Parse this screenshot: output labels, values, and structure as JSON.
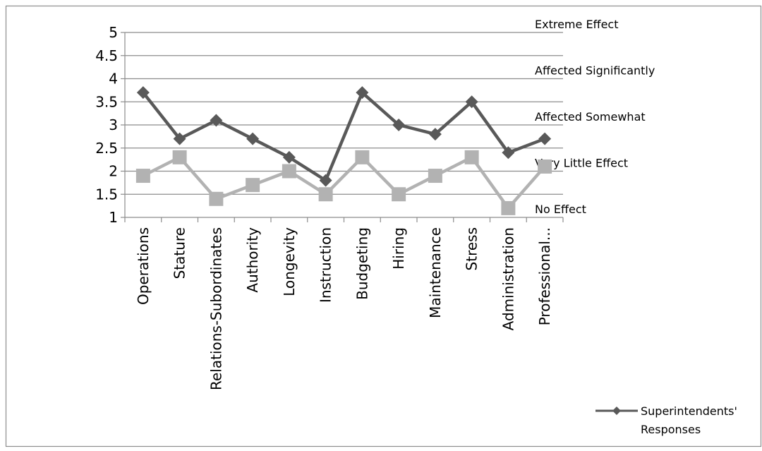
{
  "chart_data": {
    "type": "line",
    "title": "",
    "xlabel": "",
    "ylabel": "",
    "ylim": [
      1,
      5
    ],
    "yticks": [
      "1",
      "1.5",
      "2",
      "2.5",
      "3",
      "3.5",
      "4",
      "4.5",
      "5"
    ],
    "grid": true,
    "legend_position": "bottom-right",
    "categories": [
      "Operations",
      "Stature",
      "Relations-Subordinates",
      "Authority",
      "Longevity",
      "Instruction",
      "Budgeting",
      "Hiring",
      "Maintenance",
      "Stress",
      "Administration",
      "Professional..."
    ],
    "scale_labels": [
      {
        "text": "Extreme Effect",
        "y": 5
      },
      {
        "text": "Affected Significantly",
        "y": 4
      },
      {
        "text": "Affected Somewhat",
        "y": 3
      },
      {
        "text": "Very Little Effect",
        "y": 2
      },
      {
        "text": "No Effect",
        "y": 1
      }
    ],
    "series": [
      {
        "name": "",
        "marker": "square",
        "color": "#b2b2b2",
        "values": [
          1.9,
          2.3,
          1.4,
          1.7,
          2.0,
          1.5,
          2.3,
          1.5,
          1.9,
          2.3,
          1.2,
          2.1
        ]
      },
      {
        "name": "Superintendents' Responses",
        "marker": "diamond",
        "color": "#595959",
        "values": [
          3.7,
          2.7,
          3.1,
          2.7,
          2.3,
          1.8,
          3.7,
          3.0,
          2.8,
          3.5,
          2.4,
          2.7
        ]
      }
    ],
    "legend": [
      {
        "label_line1": "Superintendents'",
        "label_line2": "Responses",
        "marker": "diamond",
        "color": "#595959"
      }
    ]
  }
}
